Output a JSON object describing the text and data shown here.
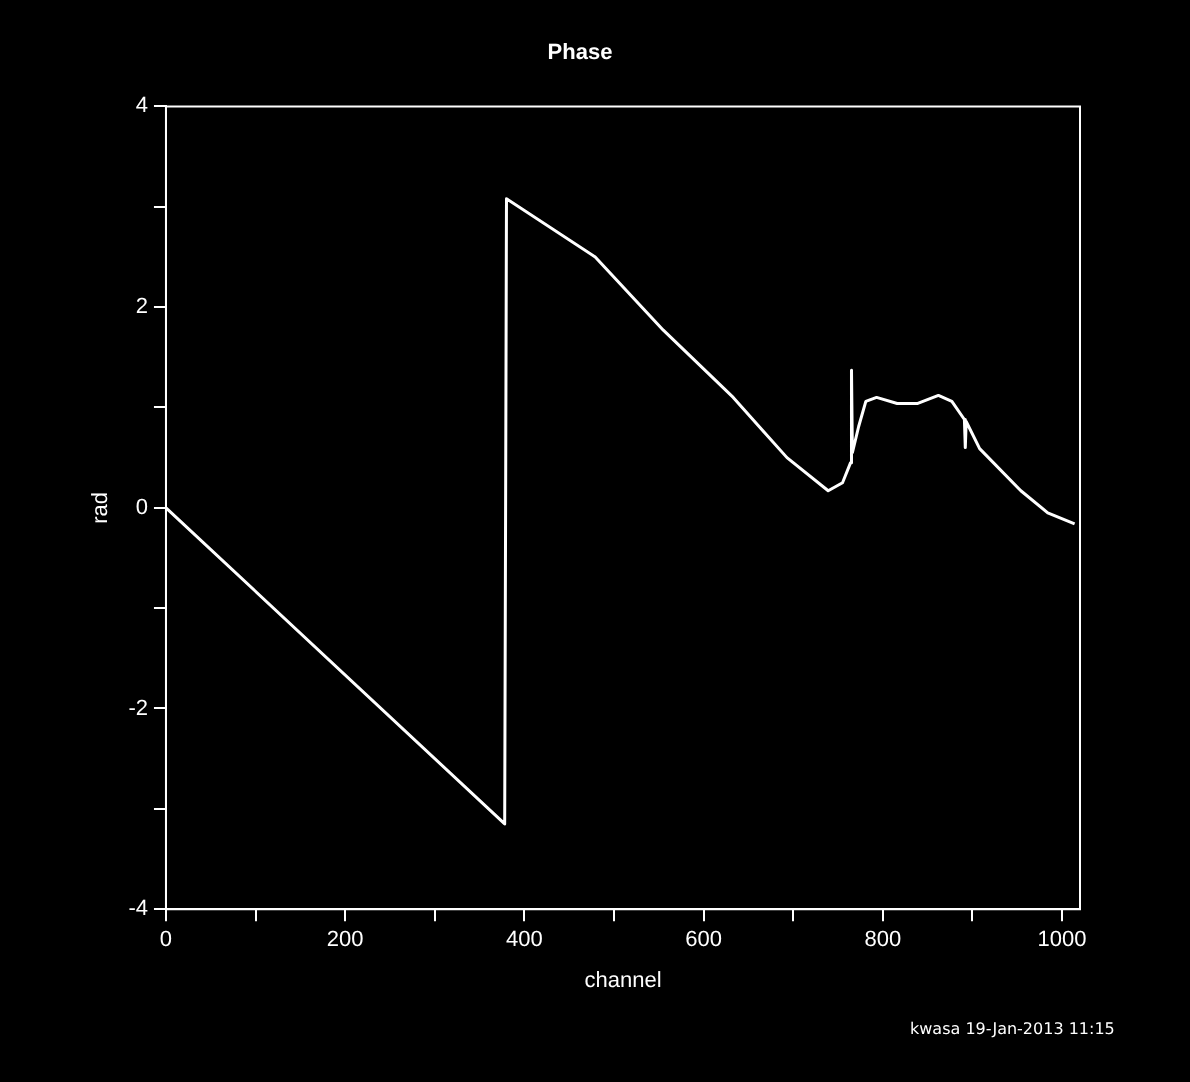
{
  "chart_data": {
    "type": "line",
    "title": "Phase",
    "xlabel": "channel",
    "ylabel": "rad",
    "annotations": [
      "kwasa 19-Jan-2013 11:15"
    ],
    "series": [
      {
        "color": "#ffffff",
        "x": [
          0,
          378,
          380,
          479,
          555,
          633,
          693,
          739,
          755,
          764,
          765,
          766,
          773,
          781,
          793,
          816,
          839,
          862,
          877,
          891,
          892,
          893,
          908,
          954,
          984,
          1014
        ],
        "values": [
          0,
          -3.15,
          3.08,
          2.5,
          1.77,
          1.1,
          0.5,
          0.17,
          0.25,
          0.45,
          1.37,
          0.55,
          0.81,
          1.06,
          1.1,
          1.04,
          1.04,
          1.12,
          1.06,
          0.88,
          0.6,
          0.86,
          0.59,
          0.17,
          -0.05,
          -0.16
        ]
      }
    ],
    "xlim": [
      0,
      1020
    ],
    "xticks": [
      0,
      {
        "value": 100,
        "label": null
      },
      200,
      {
        "value": 300,
        "label": null
      },
      400,
      {
        "value": 500,
        "label": null
      },
      600,
      {
        "value": 700,
        "label": null
      },
      800,
      {
        "value": 900,
        "label": null
      },
      1000
    ],
    "ylim": [
      -4,
      4
    ],
    "yticks": [
      -4,
      {
        "value": -3,
        "label": null
      },
      -2,
      {
        "value": -1,
        "label": null
      },
      0,
      {
        "value": 1,
        "label": null
      },
      2,
      {
        "value": 3,
        "label": null
      },
      4
    ],
    "grid": false,
    "legend": false,
    "marker": "none",
    "line_style": "solid"
  }
}
